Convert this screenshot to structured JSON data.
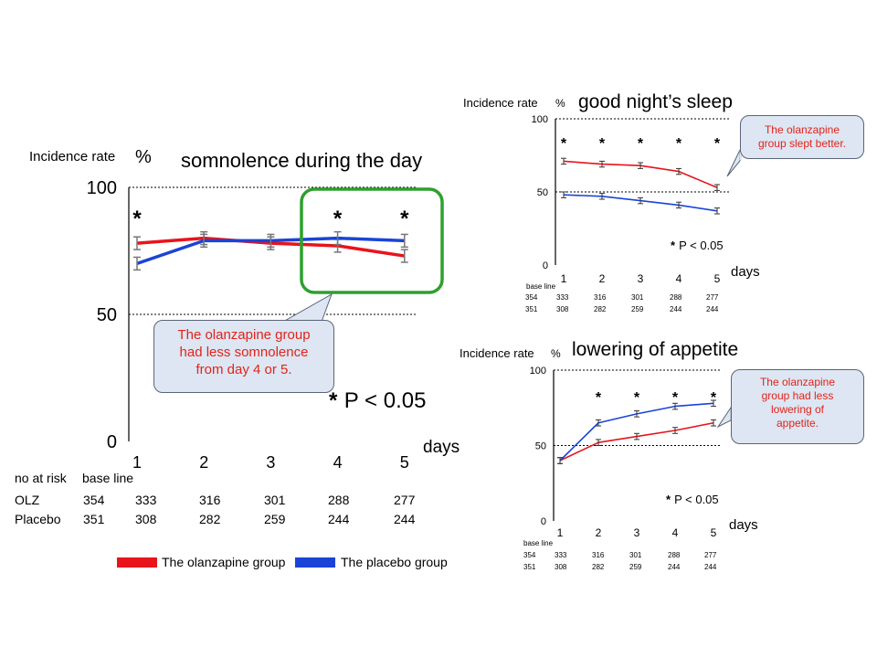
{
  "colors": {
    "olz": "#e8141b",
    "placebo": "#1a44d6",
    "error_bar": "#777777",
    "highlight_box": "#2ea02e",
    "callout_text": "#e2231a"
  },
  "legend": {
    "olz_label": "The olanzapine group",
    "placebo_label": "The placebo group"
  },
  "chart_data": [
    {
      "type": "line",
      "id": "main",
      "title": "somnolence during the day",
      "ylabel": "Incidence rate",
      "yunit": "%",
      "xlabel": "days",
      "x": [
        1,
        2,
        3,
        4,
        5
      ],
      "ylim": [
        0,
        100
      ],
      "yticks": [
        0,
        50,
        100
      ],
      "series": [
        {
          "name": "The olanzapine group",
          "color": "#e8141b",
          "values": [
            78,
            80,
            78,
            77,
            73
          ],
          "err": [
            2.5,
            2.5,
            2.5,
            2.5,
            2.5
          ]
        },
        {
          "name": "The placebo group",
          "color": "#1a44d6",
          "values": [
            70,
            79,
            79,
            80,
            79
          ],
          "err": [
            2.5,
            2.5,
            2.5,
            2.5,
            2.5
          ]
        }
      ],
      "significant": [
        1,
        4,
        5
      ],
      "significance_note": "P < 0.05",
      "callout": [
        "The olanzapine group",
        "had less somnolence",
        "from day 4 or 5."
      ],
      "risk_table": {
        "header": [
          "no at risk",
          "base line"
        ],
        "rows": [
          {
            "label": "OLZ",
            "values": [
              "354",
              "333",
              "316",
              "301",
              "288",
              "277"
            ]
          },
          {
            "label": "Placebo",
            "values": [
              "351",
              "308",
              "282",
              "259",
              "244",
              "244"
            ]
          }
        ]
      }
    },
    {
      "type": "line",
      "id": "sleep",
      "title": "good night’s sleep",
      "ylabel": "Incidence rate",
      "yunit": "%",
      "xlabel": "days",
      "x": [
        1,
        2,
        3,
        4,
        5
      ],
      "ylim": [
        0,
        100
      ],
      "yticks": [
        0,
        50,
        100
      ],
      "series": [
        {
          "name": "The olanzapine group",
          "color": "#e8141b",
          "values": [
            71,
            69,
            68,
            64,
            53
          ],
          "err": [
            2,
            2,
            2,
            2,
            2
          ]
        },
        {
          "name": "The placebo group",
          "color": "#1a44d6",
          "values": [
            48,
            47,
            44,
            41,
            37
          ],
          "err": [
            2,
            2,
            2,
            2,
            2
          ]
        }
      ],
      "significant": [
        1,
        2,
        3,
        4,
        5
      ],
      "significance_note": "P < 0.05",
      "callout": [
        "The olanzapine",
        "group slept better."
      ],
      "risk_table": {
        "header": [
          "base line"
        ],
        "rows": [
          {
            "label": "",
            "values": [
              "354",
              "333",
              "316",
              "301",
              "288",
              "277"
            ]
          },
          {
            "label": "",
            "values": [
              "351",
              "308",
              "282",
              "259",
              "244",
              "244"
            ]
          }
        ]
      }
    },
    {
      "type": "line",
      "id": "appetite",
      "title": "lowering of appetite",
      "ylabel": "Incidence rate",
      "yunit": "%",
      "xlabel": "days",
      "x": [
        1,
        2,
        3,
        4,
        5
      ],
      "ylim": [
        0,
        100
      ],
      "yticks": [
        0,
        50,
        100
      ],
      "series": [
        {
          "name": "The olanzapine group",
          "color": "#e8141b",
          "values": [
            40,
            52,
            56,
            60,
            65
          ],
          "err": [
            2,
            2,
            2,
            2,
            2
          ]
        },
        {
          "name": "The placebo group",
          "color": "#1a44d6",
          "values": [
            40,
            65,
            71,
            76,
            78
          ],
          "err": [
            2,
            2,
            2,
            2,
            2
          ]
        }
      ],
      "significant": [
        2,
        3,
        4,
        5
      ],
      "significance_note": "P < 0.05",
      "callout": [
        "The olanzapine",
        "group had less",
        "lowering of",
        "appetite."
      ],
      "risk_table": {
        "header": [
          "base line"
        ],
        "rows": [
          {
            "label": "",
            "values": [
              "354",
              "333",
              "316",
              "301",
              "288",
              "277"
            ]
          },
          {
            "label": "",
            "values": [
              "351",
              "308",
              "282",
              "259",
              "244",
              "244"
            ]
          }
        ]
      }
    }
  ]
}
